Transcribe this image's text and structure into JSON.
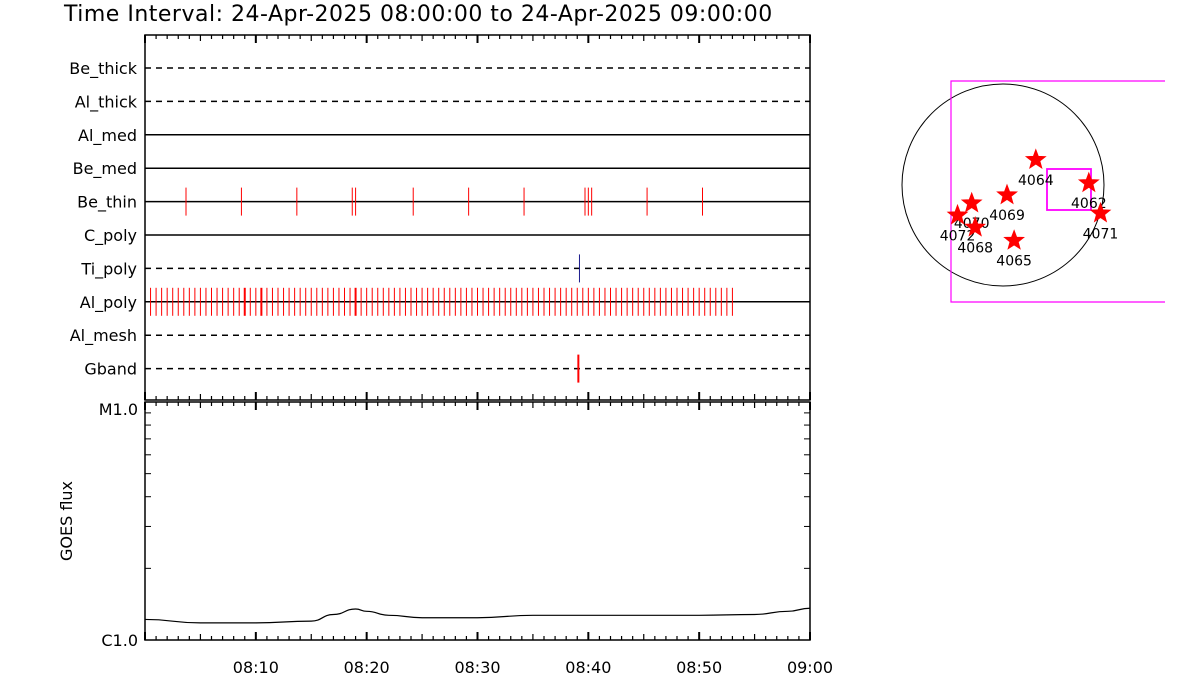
{
  "title": "Time Interval: 24-Apr-2025 08:00:00 to 24-Apr-2025 09:00:00",
  "colors": {
    "event": "#ff0000",
    "ti_event": "#1a1a8c",
    "fov": "#ff00ff",
    "star": "#ff0000",
    "line": "#000000"
  },
  "chart_data": [
    {
      "type": "event-timeline",
      "x_range_min": [
        0,
        60
      ],
      "x_tick_labels": [
        "08:10",
        "08:20",
        "08:30",
        "08:40",
        "08:50",
        "09:00"
      ],
      "x_tick_values_min": [
        10,
        20,
        30,
        40,
        50,
        60
      ],
      "filters": [
        {
          "name": "Be_thick",
          "style": "dashed",
          "events_min": []
        },
        {
          "name": "Al_thick",
          "style": "dashed",
          "events_min": []
        },
        {
          "name": "Al_med",
          "style": "solid",
          "events_min": []
        },
        {
          "name": "Be_med",
          "style": "solid",
          "events_min": []
        },
        {
          "name": "Be_thin",
          "style": "solid",
          "events_min": [
            3.7,
            8.7,
            13.7,
            18.7,
            19.0,
            24.2,
            29.2,
            34.2,
            39.7,
            40.0,
            40.3,
            45.3,
            50.3
          ]
        },
        {
          "name": "C_poly",
          "style": "solid",
          "events_min": []
        },
        {
          "name": "Ti_poly",
          "style": "dashed",
          "events_min": [
            39.2
          ]
        },
        {
          "name": "Al_poly",
          "style": "solid",
          "events_range_min": [
            0.5,
            53.0
          ],
          "events_step_min": 0.5,
          "emphasized_min": [
            9.0,
            10.5,
            18.7,
            19.0,
            19.3,
            39.7,
            45.3,
            50.3
          ]
        },
        {
          "name": "Al_mesh",
          "style": "dashed",
          "events_min": []
        },
        {
          "name": "Gband",
          "style": "dashed",
          "events_min": [
            39.1
          ]
        }
      ]
    },
    {
      "type": "line",
      "ylabel": "GOES flux",
      "yscale": "log",
      "y_tick_labels": [
        "C1.0",
        "M1.0"
      ],
      "x_min": [
        0,
        5,
        10,
        15,
        17,
        19,
        20,
        22,
        25,
        30,
        35,
        40,
        45,
        50,
        55,
        58,
        60
      ],
      "y_flux": [
        1.22e-06,
        1.18e-06,
        1.18e-06,
        1.2e-06,
        1.28e-06,
        1.35e-06,
        1.32e-06,
        1.27e-06,
        1.24e-06,
        1.24e-06,
        1.27e-06,
        1.27e-06,
        1.27e-06,
        1.27e-06,
        1.28e-06,
        1.32e-06,
        1.36e-06
      ]
    },
    {
      "type": "solar-disk-map",
      "regions": [
        {
          "label": "4064",
          "x": 0.65,
          "y": -0.25
        },
        {
          "label": "4062",
          "x": 1.7,
          "y": -0.02
        },
        {
          "label": "4069",
          "x": 0.08,
          "y": 0.1
        },
        {
          "label": "4070",
          "x": -0.62,
          "y": 0.18
        },
        {
          "label": "4072",
          "x": -0.9,
          "y": 0.3
        },
        {
          "label": "4068",
          "x": -0.55,
          "y": 0.42
        },
        {
          "label": "4065",
          "x": 0.22,
          "y": 0.55
        },
        {
          "label": "4071",
          "x": 1.93,
          "y": 0.28
        }
      ]
    }
  ]
}
